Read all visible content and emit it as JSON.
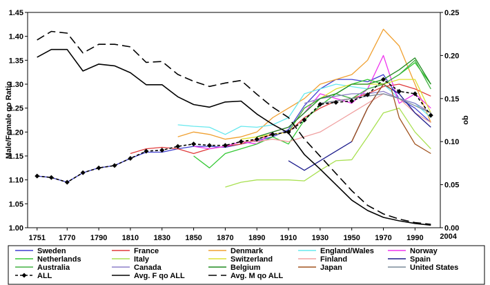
{
  "chart_data": {
    "type": "line",
    "title": "",
    "ylabel_left": "Male/Female qo Ratio",
    "ylabel_right": "qo",
    "xlim": [
      1745,
      2006
    ],
    "ylim_left": [
      1.0,
      1.45
    ],
    "ylim_right": [
      0.0,
      0.25
    ],
    "x_ticks": [
      1751,
      1770,
      1790,
      1810,
      1830,
      1850,
      1870,
      1890,
      1910,
      1930,
      1950,
      1970,
      1990
    ],
    "x_extra_tick": 2004,
    "y_ticks_left": [
      "1.00",
      "1.05",
      "1.10",
      "1.15",
      "1.20",
      "1.25",
      "1.30",
      "1.35",
      "1.40",
      "1.45"
    ],
    "y_ticks_right": [
      "0.00",
      "0.05",
      "0.10",
      "0.15",
      "0.20",
      "0.25"
    ],
    "grid": false,
    "legend_position": "bottom",
    "series": [
      {
        "name": "Sweden",
        "color": "#3f3fd0",
        "axis": "left",
        "style": "solid",
        "x": [
          1751,
          1760,
          1770,
          1780,
          1790,
          1800,
          1810,
          1820,
          1830,
          1840,
          1850,
          1860,
          1870,
          1880,
          1890,
          1900,
          1910,
          1920,
          1930,
          1940,
          1950,
          1960,
          1970,
          1980,
          1990,
          2000
        ],
        "y": [
          1.108,
          1.105,
          1.095,
          1.115,
          1.125,
          1.13,
          1.145,
          1.158,
          1.158,
          1.165,
          1.17,
          1.17,
          1.168,
          1.175,
          1.182,
          1.19,
          1.205,
          1.255,
          1.29,
          1.31,
          1.31,
          1.305,
          1.32,
          1.27,
          1.25,
          1.22
        ]
      },
      {
        "name": "France",
        "color": "#e03a3a",
        "axis": "left",
        "style": "solid",
        "x": [
          1810,
          1820,
          1830,
          1840,
          1850,
          1860,
          1870,
          1880,
          1890,
          1900,
          1910,
          1920,
          1930,
          1940,
          1950,
          1960,
          1970,
          1980,
          1990,
          2000
        ],
        "y": [
          1.155,
          1.165,
          1.168,
          1.165,
          1.155,
          1.165,
          1.17,
          1.175,
          1.185,
          1.195,
          1.2,
          1.23,
          1.25,
          1.265,
          1.27,
          1.28,
          1.295,
          1.3,
          1.29,
          1.275
        ]
      },
      {
        "name": "Denmark",
        "color": "#f0a030",
        "axis": "left",
        "style": "solid",
        "x": [
          1840,
          1850,
          1860,
          1870,
          1880,
          1890,
          1900,
          1910,
          1920,
          1930,
          1940,
          1950,
          1960,
          1970,
          1980,
          1990,
          2000
        ],
        "y": [
          1.19,
          1.2,
          1.195,
          1.185,
          1.19,
          1.2,
          1.23,
          1.25,
          1.27,
          1.3,
          1.31,
          1.32,
          1.35,
          1.415,
          1.38,
          1.3,
          1.22
        ]
      },
      {
        "name": "England/Wales",
        "color": "#66e8ee",
        "axis": "left",
        "style": "solid",
        "x": [
          1840,
          1850,
          1860,
          1870,
          1880,
          1890,
          1900,
          1910,
          1920,
          1930,
          1940,
          1950,
          1960,
          1970,
          1980,
          1990,
          2000
        ],
        "y": [
          1.215,
          1.212,
          1.21,
          1.195,
          1.212,
          1.21,
          1.215,
          1.23,
          1.28,
          1.29,
          1.3,
          1.295,
          1.29,
          1.3,
          1.27,
          1.26,
          1.23
        ]
      },
      {
        "name": "Norway",
        "color": "#ee33ee",
        "axis": "left",
        "style": "solid",
        "x": [
          1850,
          1860,
          1870,
          1880,
          1890,
          1900,
          1910,
          1920,
          1930,
          1940,
          1950,
          1960,
          1970,
          1980,
          1990,
          2000
        ],
        "y": [
          1.17,
          1.165,
          1.17,
          1.18,
          1.175,
          1.2,
          1.21,
          1.24,
          1.28,
          1.27,
          1.26,
          1.29,
          1.36,
          1.26,
          1.28,
          1.25
        ]
      },
      {
        "name": "Netherlands",
        "color": "#33c833",
        "axis": "left",
        "style": "solid",
        "x": [
          1850,
          1860,
          1870,
          1880,
          1890,
          1900,
          1910,
          1920,
          1930,
          1940,
          1950,
          1960,
          1970,
          1980,
          1990,
          2000
        ],
        "y": [
          1.15,
          1.125,
          1.155,
          1.165,
          1.175,
          1.19,
          1.175,
          1.225,
          1.255,
          1.28,
          1.3,
          1.31,
          1.3,
          1.32,
          1.345,
          1.3
        ]
      },
      {
        "name": "Italy",
        "color": "#a8e050",
        "axis": "left",
        "style": "solid",
        "x": [
          1870,
          1880,
          1890,
          1900,
          1910,
          1920,
          1930,
          1940,
          1950,
          1960,
          1970,
          1980,
          1990,
          2000
        ],
        "y": [
          1.085,
          1.095,
          1.1,
          1.1,
          1.1,
          1.098,
          1.12,
          1.14,
          1.142,
          1.19,
          1.24,
          1.25,
          1.2,
          1.165
        ]
      },
      {
        "name": "Switzerland",
        "color": "#dde030",
        "axis": "left",
        "style": "solid",
        "x": [
          1880,
          1890,
          1900,
          1910,
          1920,
          1930,
          1940,
          1950,
          1960,
          1970,
          1980,
          1990,
          2000
        ],
        "y": [
          1.185,
          1.19,
          1.195,
          1.2,
          1.25,
          1.27,
          1.29,
          1.3,
          1.3,
          1.3,
          1.31,
          1.31,
          1.24
        ]
      },
      {
        "name": "Finland",
        "color": "#f0a0a0",
        "axis": "left",
        "style": "solid",
        "x": [
          1880,
          1890,
          1900,
          1910,
          1920,
          1930,
          1940,
          1950,
          1960,
          1970,
          1980,
          1990,
          2000
        ],
        "y": [
          1.18,
          1.18,
          1.185,
          1.18,
          1.19,
          1.2,
          1.22,
          1.24,
          1.26,
          1.28,
          1.27,
          1.24,
          1.22
        ]
      },
      {
        "name": "Spain",
        "color": "#1c1c8c",
        "axis": "left",
        "style": "solid",
        "x": [
          1910,
          1920,
          1930,
          1940,
          1950,
          1960,
          1970,
          1980,
          1990,
          2000
        ],
        "y": [
          1.14,
          1.12,
          1.14,
          1.16,
          1.18,
          1.25,
          1.3,
          1.28,
          1.24,
          1.21
        ]
      },
      {
        "name": "Australia",
        "color": "#40b040",
        "axis": "left",
        "style": "solid",
        "x": [
          1910,
          1920,
          1930,
          1940,
          1950,
          1960,
          1970,
          1980,
          1990,
          2000
        ],
        "y": [
          1.2,
          1.25,
          1.27,
          1.28,
          1.27,
          1.29,
          1.3,
          1.32,
          1.35,
          1.29
        ]
      },
      {
        "name": "Canada",
        "color": "#8b7fc8",
        "axis": "left",
        "style": "solid",
        "x": [
          1920,
          1930,
          1940,
          1950,
          1960,
          1970,
          1980,
          1990,
          2000
        ],
        "y": [
          1.26,
          1.27,
          1.275,
          1.28,
          1.28,
          1.285,
          1.27,
          1.26,
          1.24
        ]
      },
      {
        "name": "Belgium",
        "color": "#1f8a1f",
        "axis": "left",
        "style": "solid",
        "x": [
          1890,
          1900,
          1910,
          1920,
          1930,
          1940,
          1950,
          1960,
          1970,
          1980,
          1990,
          2000
        ],
        "y": [
          1.19,
          1.2,
          1.21,
          1.24,
          1.27,
          1.28,
          1.3,
          1.3,
          1.31,
          1.33,
          1.355,
          1.3
        ]
      },
      {
        "name": "Japan",
        "color": "#a0521d",
        "axis": "left",
        "style": "solid",
        "x": [
          1950,
          1960,
          1970,
          1975,
          1980,
          1990,
          2000
        ],
        "y": [
          1.18,
          1.25,
          1.3,
          1.29,
          1.23,
          1.175,
          1.155
        ]
      },
      {
        "name": "United States",
        "color": "#7a8a9a",
        "axis": "left",
        "style": "solid",
        "x": [
          1930,
          1940,
          1950,
          1960,
          1970,
          1980,
          1990,
          2000
        ],
        "y": [
          1.26,
          1.265,
          1.27,
          1.275,
          1.28,
          1.27,
          1.255,
          1.24
        ]
      },
      {
        "name": "ALL",
        "color": "#000000",
        "axis": "left",
        "style": "dashed-diamond",
        "x": [
          1751,
          1760,
          1770,
          1780,
          1790,
          1800,
          1810,
          1820,
          1830,
          1840,
          1850,
          1860,
          1870,
          1880,
          1890,
          1900,
          1910,
          1920,
          1930,
          1940,
          1950,
          1960,
          1970,
          1980,
          1990,
          2000
        ],
        "y": [
          1.108,
          1.105,
          1.095,
          1.115,
          1.125,
          1.13,
          1.145,
          1.16,
          1.162,
          1.17,
          1.175,
          1.172,
          1.172,
          1.18,
          1.185,
          1.195,
          1.2,
          1.225,
          1.258,
          1.262,
          1.265,
          1.278,
          1.31,
          1.285,
          1.28,
          1.235
        ]
      },
      {
        "name": "Avg. F qo ALL",
        "color": "#000000",
        "axis": "right",
        "style": "solid",
        "x": [
          1751,
          1760,
          1770,
          1780,
          1790,
          1800,
          1810,
          1820,
          1830,
          1840,
          1850,
          1860,
          1870,
          1880,
          1890,
          1900,
          1910,
          1920,
          1930,
          1940,
          1950,
          1960,
          1970,
          1980,
          1990,
          2000
        ],
        "y": [
          0.198,
          0.207,
          0.207,
          0.182,
          0.19,
          0.188,
          0.18,
          0.166,
          0.166,
          0.152,
          0.143,
          0.14,
          0.146,
          0.147,
          0.132,
          0.12,
          0.11,
          0.085,
          0.068,
          0.05,
          0.032,
          0.02,
          0.012,
          0.008,
          0.005,
          0.003
        ]
      },
      {
        "name": "Avg. M qo ALL",
        "color": "#000000",
        "axis": "right",
        "style": "longdash",
        "x": [
          1751,
          1760,
          1770,
          1780,
          1790,
          1800,
          1810,
          1820,
          1830,
          1840,
          1850,
          1860,
          1870,
          1880,
          1890,
          1900,
          1910,
          1920,
          1930,
          1940,
          1950,
          1960,
          1970,
          1980,
          1990,
          2000
        ],
        "y": [
          0.218,
          0.228,
          0.226,
          0.203,
          0.213,
          0.213,
          0.21,
          0.192,
          0.193,
          0.178,
          0.17,
          0.164,
          0.168,
          0.171,
          0.155,
          0.14,
          0.128,
          0.103,
          0.083,
          0.063,
          0.043,
          0.026,
          0.016,
          0.01,
          0.006,
          0.004
        ]
      }
    ]
  },
  "legend": {
    "rows": [
      [
        "Sweden",
        "France",
        "Denmark",
        "England/Wales",
        "Norway"
      ],
      [
        "Netherlands",
        "Italy",
        "Switzerland",
        "Finland",
        "Spain"
      ],
      [
        "Australia",
        "Canada",
        "Belgium",
        "Japan",
        "United States"
      ],
      [
        "ALL",
        "Avg. F qo ALL",
        "Avg. M qo ALL"
      ]
    ]
  }
}
